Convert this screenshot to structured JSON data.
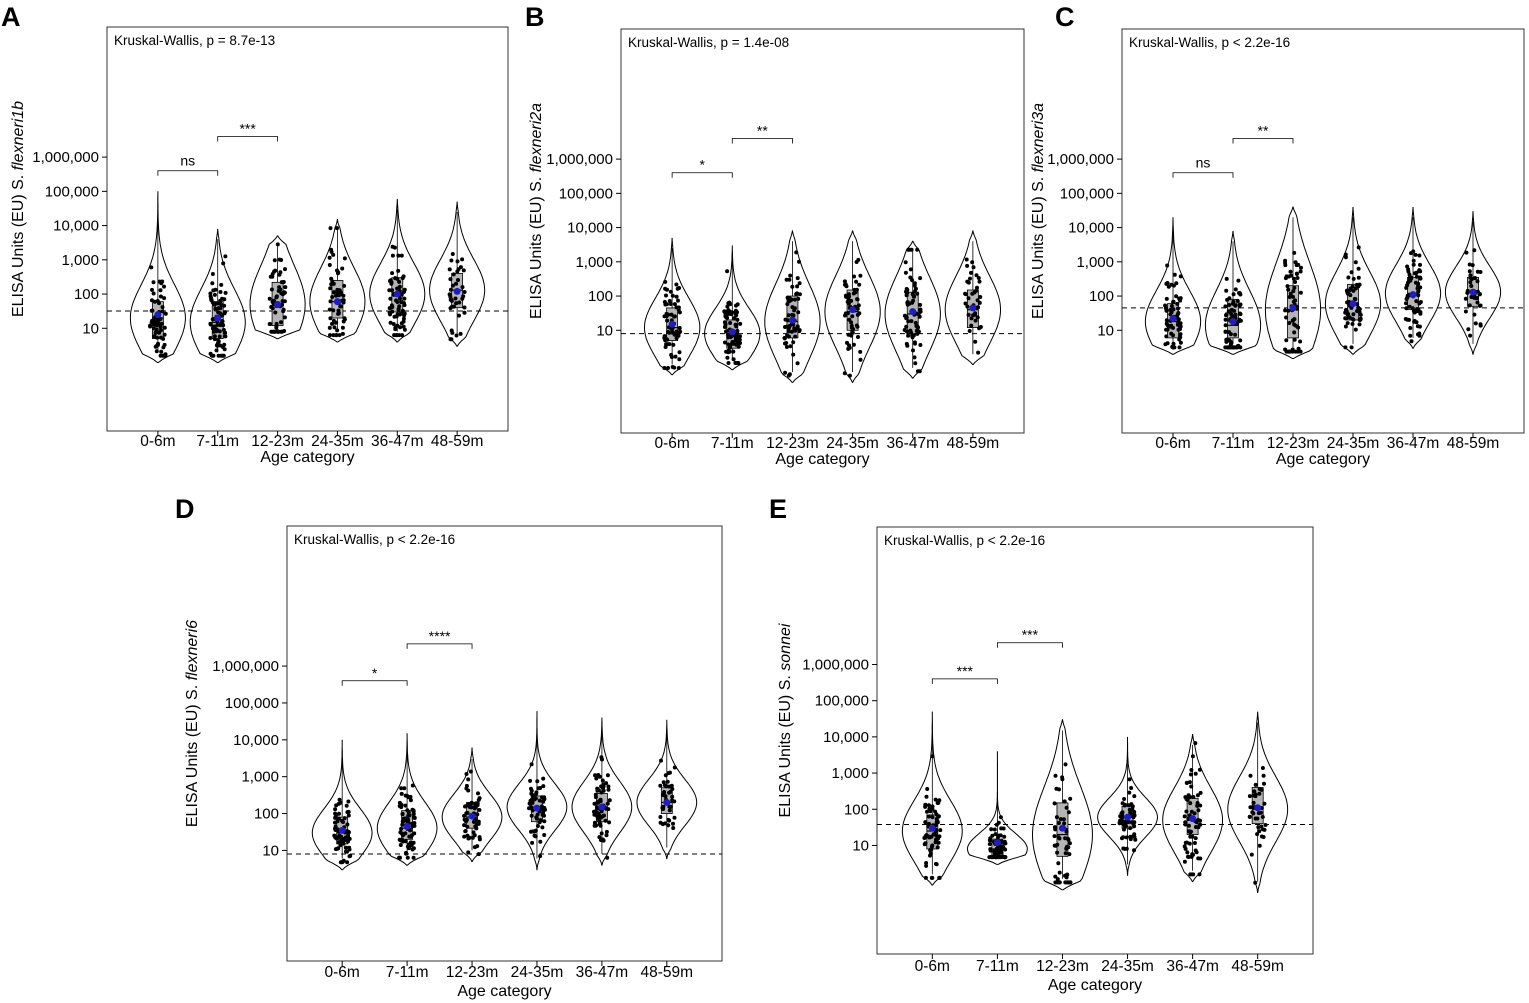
{
  "figure": {
    "shared": {
      "xlabel": "Age category",
      "categories": [
        "0-6m",
        "7-11m",
        "12-23m",
        "24-35m",
        "36-47m",
        "48-59m"
      ],
      "yticks": [
        10,
        100,
        1000,
        10000,
        100000,
        1000000
      ],
      "ytick_labels": [
        "10",
        "100",
        "1,000",
        "10,000",
        "100,000",
        "1,000,000"
      ],
      "ylabel_prefix": "ELISA Units (EU) S. ",
      "scale": "log10",
      "ylim_log10": [
        -2.0,
        9.8
      ]
    }
  },
  "chart_data": [
    {
      "type": "violin",
      "panel": "A",
      "title": "",
      "ylabel_species": "flexneri1b",
      "xlabel": "Age category",
      "categories": [
        "0-6m",
        "7-11m",
        "12-23m",
        "24-35m",
        "36-47m",
        "48-59m"
      ],
      "test_label": "Kruskal-Wallis, p = 8.7e-13",
      "cutoff": 32,
      "comparisons": [
        {
          "from": "0-6m",
          "to": "7-11m",
          "label": "ns",
          "y": 400000
        },
        {
          "from": "7-11m",
          "to": "12-23m",
          "label": "***",
          "y": 4000000
        }
      ],
      "groups": [
        {
          "category": "0-6m",
          "q1": 5,
          "median": 20,
          "q3": 60,
          "mean": 25,
          "min": 1,
          "max": 100000,
          "n": 70
        },
        {
          "category": "7-11m",
          "q1": 5,
          "median": 15,
          "q3": 60,
          "mean": 20,
          "min": 1,
          "max": 8000,
          "n": 80
        },
        {
          "category": "12-23m",
          "q1": 12,
          "median": 50,
          "q3": 220,
          "mean": 50,
          "min": 5,
          "max": 5000,
          "n": 60
        },
        {
          "category": "24-35m",
          "q1": 20,
          "median": 60,
          "q3": 250,
          "mean": 60,
          "min": 4,
          "max": 15000,
          "n": 60
        },
        {
          "category": "36-47m",
          "q1": 30,
          "median": 100,
          "q3": 300,
          "mean": 100,
          "min": 4,
          "max": 60000,
          "n": 70
        },
        {
          "category": "48-59m",
          "q1": 40,
          "median": 130,
          "q3": 400,
          "mean": 120,
          "min": 3,
          "max": 50000,
          "n": 40
        }
      ]
    },
    {
      "type": "violin",
      "panel": "B",
      "title": "",
      "ylabel_species": "flexneri2a",
      "xlabel": "Age category",
      "categories": [
        "0-6m",
        "7-11m",
        "12-23m",
        "24-35m",
        "36-47m",
        "48-59m"
      ],
      "test_label": "Kruskal-Wallis, p = 1.4e-08",
      "cutoff": 8,
      "comparisons": [
        {
          "from": "0-6m",
          "to": "7-11m",
          "label": "*",
          "y": 400000
        },
        {
          "from": "7-11m",
          "to": "12-23m",
          "label": "**",
          "y": 4000000
        }
      ],
      "groups": [
        {
          "category": "0-6m",
          "q1": 5,
          "median": 12,
          "q3": 45,
          "mean": 15,
          "min": 0.5,
          "max": 5000,
          "n": 70
        },
        {
          "category": "7-11m",
          "q1": 3,
          "median": 8,
          "q3": 20,
          "mean": 9,
          "min": 0.7,
          "max": 3000,
          "n": 80
        },
        {
          "category": "12-23m",
          "q1": 6,
          "median": 18,
          "q3": 100,
          "mean": 20,
          "min": 0.3,
          "max": 8000,
          "n": 60
        },
        {
          "category": "24-35m",
          "q1": 10,
          "median": 35,
          "q3": 150,
          "mean": 40,
          "min": 0.3,
          "max": 8000,
          "n": 60
        },
        {
          "category": "36-47m",
          "q1": 8,
          "median": 30,
          "q3": 130,
          "mean": 35,
          "min": 0.4,
          "max": 4000,
          "n": 70
        },
        {
          "category": "48-59m",
          "q1": 12,
          "median": 40,
          "q3": 150,
          "mean": 45,
          "min": 1,
          "max": 8000,
          "n": 40
        }
      ]
    },
    {
      "type": "violin",
      "panel": "C",
      "title": "",
      "ylabel_species": "flexneri3a",
      "xlabel": "Age category",
      "categories": [
        "0-6m",
        "7-11m",
        "12-23m",
        "24-35m",
        "36-47m",
        "48-59m"
      ],
      "test_label": "Kruskal-Wallis, p < 2.2e-16",
      "cutoff": 45,
      "comparisons": [
        {
          "from": "0-6m",
          "to": "7-11m",
          "label": "ns",
          "y": 400000
        },
        {
          "from": "7-11m",
          "to": "12-23m",
          "label": "**",
          "y": 4000000
        }
      ],
      "groups": [
        {
          "category": "0-6m",
          "q1": 6,
          "median": 18,
          "q3": 60,
          "mean": 22,
          "min": 2,
          "max": 20000,
          "n": 70
        },
        {
          "category": "7-11m",
          "q1": 6,
          "median": 14,
          "q3": 80,
          "mean": 18,
          "min": 2,
          "max": 8000,
          "n": 80
        },
        {
          "category": "12-23m",
          "q1": 6,
          "median": 40,
          "q3": 200,
          "mean": 45,
          "min": 1.5,
          "max": 40000,
          "n": 60
        },
        {
          "category": "24-35m",
          "q1": 20,
          "median": 60,
          "q3": 220,
          "mean": 60,
          "min": 2,
          "max": 40000,
          "n": 60
        },
        {
          "category": "36-47m",
          "q1": 40,
          "median": 120,
          "q3": 350,
          "mean": 110,
          "min": 3,
          "max": 40000,
          "n": 70
        },
        {
          "category": "48-59m",
          "q1": 50,
          "median": 130,
          "q3": 350,
          "mean": 130,
          "min": 2,
          "max": 30000,
          "n": 40
        }
      ]
    },
    {
      "type": "violin",
      "panel": "D",
      "title": "",
      "ylabel_species": "flexneri6",
      "xlabel": "Age category",
      "categories": [
        "0-6m",
        "7-11m",
        "12-23m",
        "24-35m",
        "36-47m",
        "48-59m"
      ],
      "test_label": "Kruskal-Wallis, p < 2.2e-16",
      "cutoff": 8,
      "comparisons": [
        {
          "from": "0-6m",
          "to": "7-11m",
          "label": "*",
          "y": 400000
        },
        {
          "from": "7-11m",
          "to": "12-23m",
          "label": "****",
          "y": 4000000
        }
      ],
      "groups": [
        {
          "category": "0-6m",
          "q1": 15,
          "median": 30,
          "q3": 80,
          "mean": 35,
          "min": 3,
          "max": 10000,
          "n": 70
        },
        {
          "category": "7-11m",
          "q1": 20,
          "median": 40,
          "q3": 120,
          "mean": 45,
          "min": 4,
          "max": 15000,
          "n": 80
        },
        {
          "category": "12-23m",
          "q1": 40,
          "median": 80,
          "q3": 200,
          "mean": 85,
          "min": 5,
          "max": 6000,
          "n": 60
        },
        {
          "category": "24-35m",
          "q1": 60,
          "median": 150,
          "q3": 300,
          "mean": 140,
          "min": 3,
          "max": 60000,
          "n": 60
        },
        {
          "category": "36-47m",
          "q1": 60,
          "median": 150,
          "q3": 350,
          "mean": 150,
          "min": 4,
          "max": 40000,
          "n": 70
        },
        {
          "category": "48-59m",
          "q1": 100,
          "median": 200,
          "q3": 500,
          "mean": 200,
          "min": 6,
          "max": 35000,
          "n": 40
        }
      ]
    },
    {
      "type": "violin",
      "panel": "E",
      "title": "",
      "ylabel_species": "sonnei",
      "xlabel": "Age category",
      "categories": [
        "0-6m",
        "7-11m",
        "12-23m",
        "24-35m",
        "36-47m",
        "48-59m"
      ],
      "test_label": "Kruskal-Wallis, p < 2.2e-16",
      "cutoff": 38,
      "comparisons": [
        {
          "from": "0-6m",
          "to": "7-11m",
          "label": "***",
          "y": 400000
        },
        {
          "from": "7-11m",
          "to": "12-23m",
          "label": "***",
          "y": 4000000
        }
      ],
      "groups": [
        {
          "category": "0-6m",
          "q1": 8,
          "median": 25,
          "q3": 70,
          "mean": 30,
          "min": 0.8,
          "max": 50000,
          "n": 70
        },
        {
          "category": "7-11m",
          "q1": 5,
          "median": 8,
          "q3": 15,
          "mean": 12,
          "min": 3,
          "max": 4000,
          "n": 80
        },
        {
          "category": "12-23m",
          "q1": 5,
          "median": 20,
          "q3": 150,
          "mean": 30,
          "min": 0.6,
          "max": 30000,
          "n": 60
        },
        {
          "category": "24-35m",
          "q1": 30,
          "median": 60,
          "q3": 120,
          "mean": 60,
          "min": 1.5,
          "max": 10000,
          "n": 60
        },
        {
          "category": "36-47m",
          "q1": 20,
          "median": 50,
          "q3": 200,
          "mean": 55,
          "min": 1,
          "max": 12000,
          "n": 70
        },
        {
          "category": "48-59m",
          "q1": 40,
          "median": 100,
          "q3": 400,
          "mean": 110,
          "min": 0.5,
          "max": 50000,
          "n": 40
        }
      ]
    }
  ],
  "colors": {
    "box_fill": "#b5b5b5",
    "point": "#000000",
    "mean_point": "#1f1fbf",
    "violin_stroke": "#000000",
    "frame": "#333333"
  }
}
